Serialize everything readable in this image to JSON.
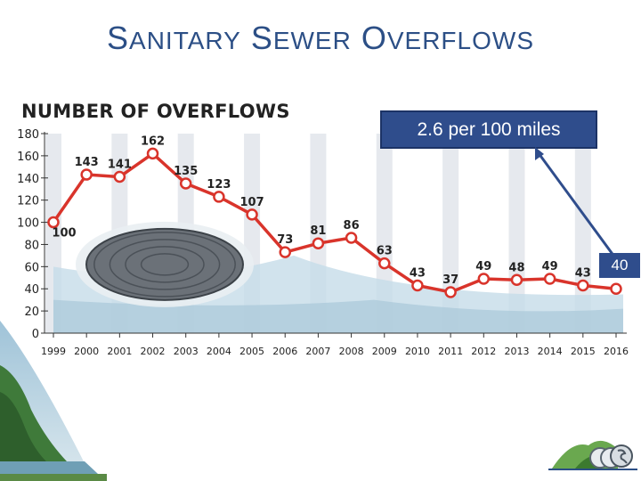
{
  "slide": {
    "title_first": "S",
    "title_rest": "ANITARY",
    "title_first2": "S",
    "title_rest2": "EWER",
    "title_first3": "O",
    "title_rest3": "VERFLOWS"
  },
  "callout": {
    "text": "2.6 per 100 miles",
    "badge": "40"
  },
  "colors": {
    "title": "#2c4f86",
    "line": "#d9342b",
    "callout": "#2f4d8c",
    "arrow": "#2f4d8c"
  },
  "chart_data": {
    "type": "line",
    "title": "NUMBER OF OVERFLOWS",
    "x": [
      "1999",
      "2000",
      "2001",
      "2002",
      "2003",
      "2004",
      "2005",
      "2006",
      "2007",
      "2008",
      "2009",
      "2010",
      "2011",
      "2012",
      "2013",
      "2014",
      "2015",
      "2016"
    ],
    "series": [
      {
        "values": [
          100,
          143,
          141,
          162,
          135,
          123,
          107,
          73,
          81,
          86,
          63,
          43,
          37,
          49,
          48,
          49,
          43,
          40
        ]
      }
    ],
    "data_labels": [
      "100",
      "143",
      "141",
      "162",
      "135",
      "123",
      "107",
      "73",
      "81",
      "86",
      "63",
      "43",
      "37",
      "49",
      "48",
      "49",
      "43",
      ""
    ],
    "yticks": [
      0,
      20,
      40,
      60,
      80,
      100,
      120,
      140,
      160,
      180
    ],
    "ylim": [
      0,
      180
    ],
    "grid": "vertical-bands",
    "xlabel": "",
    "ylabel": ""
  }
}
